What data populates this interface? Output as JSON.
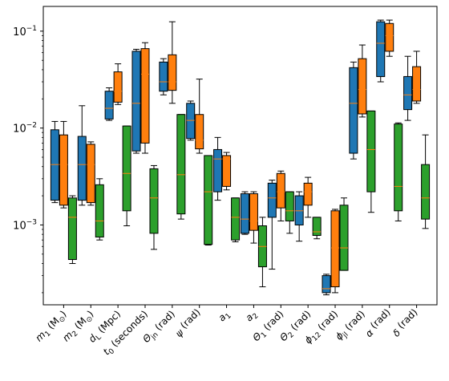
{
  "chart_data": {
    "type": "boxplot",
    "yscale": "log",
    "ylim": [
      0.00015,
      0.18
    ],
    "grid": false,
    "legend": "none",
    "y_ticks": [
      {
        "value": 0.1,
        "base": "10",
        "exp": "−1"
      },
      {
        "value": 0.01,
        "base": "10",
        "exp": "−2"
      },
      {
        "value": 0.001,
        "base": "10",
        "exp": "−3"
      }
    ],
    "categories": [
      {
        "base": "m",
        "sub": "1",
        "rest": " (M",
        "sub2": "⊙",
        "tail": ")"
      },
      {
        "base": "m",
        "sub": "2",
        "rest": " (M",
        "sub2": "⊙",
        "tail": ")"
      },
      {
        "base": "d",
        "sub": "L",
        "rest": " (Mpc)",
        "sub2": "",
        "tail": ""
      },
      {
        "base": "t",
        "sub": "0",
        "rest": " (seconds)",
        "sub2": "",
        "tail": ""
      },
      {
        "base": "Θ",
        "sub": "jn",
        "rest": " (rad)",
        "sub2": "",
        "tail": ""
      },
      {
        "base": "ψ",
        "sub": "",
        "rest": " (rad)",
        "sub2": "",
        "tail": ""
      },
      {
        "base": "a",
        "sub": "1",
        "rest": "",
        "sub2": "",
        "tail": ""
      },
      {
        "base": "a",
        "sub": "2",
        "rest": "",
        "sub2": "",
        "tail": ""
      },
      {
        "base": "Θ",
        "sub": "1",
        "rest": " (rad)",
        "sub2": "",
        "tail": ""
      },
      {
        "base": "Θ",
        "sub": "2",
        "rest": " (rad)",
        "sub2": "",
        "tail": ""
      },
      {
        "base": "ϕ",
        "sub": "12",
        "rest": " (rad)",
        "sub2": "",
        "tail": ""
      },
      {
        "base": "ϕ",
        "sub": "jl",
        "rest": " (rad)",
        "sub2": "",
        "tail": ""
      },
      {
        "base": "α",
        "sub": "",
        "rest": " (rad)",
        "sub2": "",
        "tail": ""
      },
      {
        "base": "δ",
        "sub": "",
        "rest": " (rad)",
        "sub2": "",
        "tail": ""
      }
    ],
    "colors": {
      "blue": "#1f77b4",
      "orange": "#ff7f0e",
      "green": "#2ca02c",
      "median": "#ff7f0e"
    },
    "series": [
      {
        "color_key": "blue",
        "boxes": [
          {
            "whislo": 0.0017,
            "q1": 0.0018,
            "med": 0.0042,
            "q3": 0.0096,
            "whishi": 0.0117
          },
          {
            "whislo": 0.0016,
            "q1": 0.0018,
            "med": 0.0042,
            "q3": 0.0082,
            "whishi": 0.017
          },
          {
            "whislo": 0.012,
            "q1": 0.0124,
            "med": 0.016,
            "q3": 0.024,
            "whishi": 0.026
          },
          {
            "whislo": 0.0055,
            "q1": 0.0058,
            "med": 0.018,
            "q3": 0.062,
            "whishi": 0.065
          },
          {
            "whislo": 0.022,
            "q1": 0.024,
            "med": 0.03,
            "q3": 0.048,
            "whishi": 0.052
          },
          {
            "whislo": 0.0075,
            "q1": 0.0078,
            "med": 0.012,
            "q3": 0.018,
            "whishi": 0.019
          },
          {
            "whislo": 0.0018,
            "q1": 0.0022,
            "med": 0.0048,
            "q3": 0.006,
            "whishi": 0.008
          },
          {
            "whislo": 0.0008,
            "q1": 0.00082,
            "med": 0.00115,
            "q3": 0.0021,
            "whishi": 0.0022
          },
          {
            "whislo": 0.00035,
            "q1": 0.0012,
            "med": 0.0019,
            "q3": 0.0027,
            "whishi": 0.0029
          },
          {
            "whislo": 0.00068,
            "q1": 0.001,
            "med": 0.0014,
            "q3": 0.002,
            "whishi": 0.0022
          },
          {
            "whislo": 0.00019,
            "q1": 0.0002,
            "med": 0.00022,
            "q3": 0.0003,
            "whishi": 0.00031
          },
          {
            "whislo": 0.0048,
            "q1": 0.0055,
            "med": 0.018,
            "q3": 0.042,
            "whishi": 0.048
          },
          {
            "whislo": 0.03,
            "q1": 0.034,
            "med": 0.075,
            "q3": 0.125,
            "whishi": 0.13
          },
          {
            "whislo": 0.012,
            "q1": 0.0155,
            "med": 0.022,
            "q3": 0.034,
            "whishi": 0.055
          }
        ]
      },
      {
        "color_key": "orange",
        "boxes": [
          {
            "whislo": 0.0015,
            "q1": 0.0016,
            "med": 0.0042,
            "q3": 0.0085,
            "whishi": 0.0117
          },
          {
            "whislo": 0.0016,
            "q1": 0.0017,
            "med": 0.0042,
            "q3": 0.0068,
            "whishi": 0.0072
          },
          {
            "whislo": 0.0175,
            "q1": 0.0185,
            "med": 0.024,
            "q3": 0.038,
            "whishi": 0.046
          },
          {
            "whislo": 0.0055,
            "q1": 0.007,
            "med": 0.036,
            "q3": 0.066,
            "whishi": 0.076
          },
          {
            "whislo": 0.018,
            "q1": 0.0245,
            "med": 0.03,
            "q3": 0.057,
            "whishi": 0.125
          },
          {
            "whislo": 0.0055,
            "q1": 0.0061,
            "med": 0.0075,
            "q3": 0.0138,
            "whishi": 0.032
          },
          {
            "whislo": 0.0023,
            "q1": 0.0025,
            "med": 0.0048,
            "q3": 0.0052,
            "whishi": 0.0056
          },
          {
            "whislo": 0.00065,
            "q1": 0.00088,
            "med": 0.0011,
            "q3": 0.0021,
            "whishi": 0.0022
          },
          {
            "whislo": 0.0011,
            "q1": 0.0015,
            "med": 0.0022,
            "q3": 0.0034,
            "whishi": 0.0036
          },
          {
            "whislo": 0.0012,
            "q1": 0.0016,
            "med": 0.0022,
            "q3": 0.0027,
            "whishi": 0.0031
          },
          {
            "whislo": 0.0002,
            "q1": 0.00023,
            "med": 0.00058,
            "q3": 0.0014,
            "whishi": 0.00145
          },
          {
            "whislo": 0.013,
            "q1": 0.014,
            "med": 0.025,
            "q3": 0.052,
            "whishi": 0.072
          },
          {
            "whislo": 0.055,
            "q1": 0.062,
            "med": 0.09,
            "q3": 0.12,
            "whishi": 0.13
          },
          {
            "whislo": 0.018,
            "q1": 0.019,
            "med": 0.025,
            "q3": 0.043,
            "whishi": 0.062
          }
        ]
      },
      {
        "color_key": "green",
        "boxes": [
          {
            "whislo": 0.0004,
            "q1": 0.00044,
            "med": 0.0012,
            "q3": 0.0019,
            "whishi": 0.002
          },
          {
            "whislo": 0.0007,
            "q1": 0.00075,
            "med": 0.0011,
            "q3": 0.0026,
            "whishi": 0.003
          },
          {
            "whislo": 0.00098,
            "q1": 0.0014,
            "med": 0.0034,
            "q3": 0.0105,
            "whishi": 0.0105
          },
          {
            "whislo": 0.00056,
            "q1": 0.00082,
            "med": 0.0019,
            "q3": 0.0038,
            "whishi": 0.0041
          },
          {
            "whislo": 0.00115,
            "q1": 0.0013,
            "med": 0.0033,
            "q3": 0.0138,
            "whishi": 0.0138
          },
          {
            "whislo": 0.00062,
            "q1": 0.00063,
            "med": 0.0022,
            "q3": 0.0052,
            "whishi": 0.0052
          },
          {
            "whislo": 0.00067,
            "q1": 0.0007,
            "med": 0.0012,
            "q3": 0.0019,
            "whishi": 0.0019
          },
          {
            "whislo": 0.00023,
            "q1": 0.00037,
            "med": 0.0006,
            "q3": 0.00098,
            "whishi": 0.0012
          },
          {
            "whislo": 0.00082,
            "q1": 0.0011,
            "med": 0.0014,
            "q3": 0.0022,
            "whishi": 0.0022
          },
          {
            "whislo": 0.00072,
            "q1": 0.00078,
            "med": 0.00085,
            "q3": 0.0012,
            "whishi": 0.0012
          },
          {
            "whislo": 0.00034,
            "q1": 0.00034,
            "med": 0.00058,
            "q3": 0.0016,
            "whishi": 0.0019
          },
          {
            "whislo": 0.00135,
            "q1": 0.0022,
            "med": 0.006,
            "q3": 0.015,
            "whishi": 0.015
          },
          {
            "whislo": 0.0011,
            "q1": 0.0014,
            "med": 0.0025,
            "q3": 0.011,
            "whishi": 0.0113
          },
          {
            "whislo": 0.00092,
            "q1": 0.00115,
            "med": 0.0019,
            "q3": 0.0042,
            "whishi": 0.0085
          }
        ]
      }
    ]
  }
}
